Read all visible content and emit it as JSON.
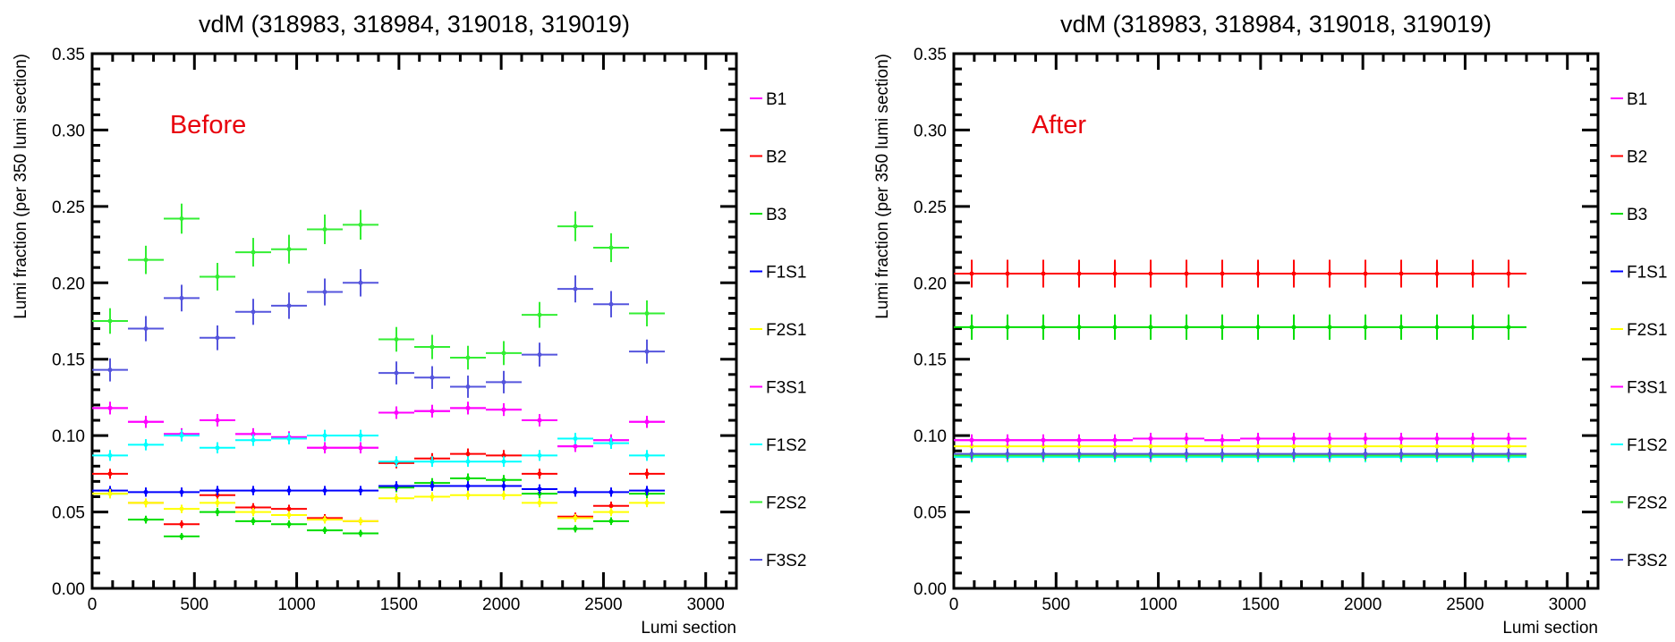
{
  "chart_data": [
    {
      "type": "scatter",
      "title": "vdM (318983, 318984, 319018, 319019)",
      "annotation": "Before",
      "annotation_color": "#e8000b",
      "xlabel": "Lumi section",
      "ylabel": "Lumi fraction (per 350 lumi section)",
      "xlim": [
        0,
        3150
      ],
      "ylim": [
        0,
        0.35
      ],
      "xticks": [
        0,
        500,
        1000,
        1500,
        2000,
        2500,
        3000
      ],
      "yticks": [
        0.0,
        0.05,
        0.1,
        0.15,
        0.2,
        0.25,
        0.3,
        0.35
      ],
      "ytick_labels": [
        "0.00",
        "0.05",
        "0.10",
        "0.15",
        "0.20",
        "0.25",
        "0.30",
        "0.35"
      ],
      "legend_position": "right",
      "x": [
        87.5,
        262.5,
        437.5,
        612.5,
        787.5,
        962.5,
        1137.5,
        1312.5,
        1487.5,
        1662.5,
        1837.5,
        2012.5,
        2187.5,
        2362.5,
        2537.5,
        2712.5
      ],
      "x_halfwidth": 87.5,
      "series": [
        {
          "name": "B1",
          "color": "#ff00ff",
          "values": [
            0.118,
            0.109,
            0.101,
            0.11,
            0.101,
            0.099,
            0.092,
            0.092,
            0.115,
            0.116,
            0.118,
            0.117,
            0.11,
            0.093,
            0.097,
            0.109
          ]
        },
        {
          "name": "B2",
          "color": "#ff0000",
          "values": [
            0.075,
            0.056,
            0.042,
            0.061,
            0.053,
            0.052,
            0.046,
            0.044,
            0.082,
            0.085,
            0.088,
            0.087,
            0.075,
            0.047,
            0.054,
            0.075
          ]
        },
        {
          "name": "B3",
          "color": "#00dd00",
          "values": [
            0.062,
            0.045,
            0.034,
            0.05,
            0.044,
            0.042,
            0.038,
            0.036,
            0.066,
            0.069,
            0.072,
            0.071,
            0.062,
            0.039,
            0.044,
            0.062
          ]
        },
        {
          "name": "F1S1",
          "color": "#0000ff",
          "values": [
            0.064,
            0.063,
            0.063,
            0.064,
            0.064,
            0.064,
            0.064,
            0.064,
            0.067,
            0.067,
            0.067,
            0.067,
            0.065,
            0.063,
            0.063,
            0.064
          ]
        },
        {
          "name": "F2S1",
          "color": "#ffff00",
          "values": [
            0.062,
            0.056,
            0.052,
            0.056,
            0.05,
            0.048,
            0.045,
            0.044,
            0.059,
            0.06,
            0.061,
            0.061,
            0.056,
            0.046,
            0.05,
            0.056
          ]
        },
        {
          "name": "F3S1",
          "color": "#ff00ff",
          "values": [
            0.118,
            0.109,
            0.101,
            0.11,
            0.101,
            0.099,
            0.092,
            0.092,
            0.115,
            0.116,
            0.118,
            0.117,
            0.11,
            0.093,
            0.097,
            0.109
          ]
        },
        {
          "name": "F1S2",
          "color": "#00ffff",
          "values": [
            0.087,
            0.094,
            0.1,
            0.092,
            0.097,
            0.098,
            0.1,
            0.1,
            0.083,
            0.083,
            0.083,
            0.083,
            0.087,
            0.098,
            0.095,
            0.087
          ]
        },
        {
          "name": "F2S2",
          "color": "#33ee33",
          "values": [
            0.175,
            0.215,
            0.242,
            0.204,
            0.22,
            0.222,
            0.235,
            0.238,
            0.163,
            0.158,
            0.151,
            0.154,
            0.179,
            0.237,
            0.223,
            0.18
          ]
        },
        {
          "name": "F3S2",
          "color": "#5555dd",
          "values": [
            0.143,
            0.17,
            0.19,
            0.164,
            0.181,
            0.185,
            0.194,
            0.2,
            0.141,
            0.138,
            0.132,
            0.135,
            0.153,
            0.196,
            0.186,
            0.155
          ]
        }
      ]
    },
    {
      "type": "scatter",
      "title": "vdM (318983, 318984, 319018, 319019)",
      "annotation": "After",
      "annotation_color": "#e8000b",
      "xlabel": "Lumi section",
      "ylabel": "Lumi fraction (per 350 lumi section)",
      "xlim": [
        0,
        3150
      ],
      "ylim": [
        0,
        0.35
      ],
      "xticks": [
        0,
        500,
        1000,
        1500,
        2000,
        2500,
        3000
      ],
      "yticks": [
        0.0,
        0.05,
        0.1,
        0.15,
        0.2,
        0.25,
        0.3,
        0.35
      ],
      "ytick_labels": [
        "0.00",
        "0.05",
        "0.10",
        "0.15",
        "0.20",
        "0.25",
        "0.30",
        "0.35"
      ],
      "legend_position": "right",
      "x": [
        87.5,
        262.5,
        437.5,
        612.5,
        787.5,
        962.5,
        1137.5,
        1312.5,
        1487.5,
        1662.5,
        1837.5,
        2012.5,
        2187.5,
        2362.5,
        2537.5,
        2712.5
      ],
      "x_halfwidth": 87.5,
      "series": [
        {
          "name": "B1",
          "color": "#ff00ff",
          "values": [
            0.097,
            0.097,
            0.097,
            0.097,
            0.097,
            0.098,
            0.098,
            0.097,
            0.098,
            0.098,
            0.098,
            0.098,
            0.098,
            0.098,
            0.098,
            0.098
          ]
        },
        {
          "name": "B2",
          "color": "#ff0000",
          "values": [
            0.206,
            0.206,
            0.206,
            0.206,
            0.206,
            0.206,
            0.206,
            0.206,
            0.206,
            0.206,
            0.206,
            0.206,
            0.206,
            0.206,
            0.206,
            0.206
          ]
        },
        {
          "name": "B3",
          "color": "#00dd00",
          "values": [
            0.171,
            0.171,
            0.171,
            0.171,
            0.171,
            0.171,
            0.171,
            0.171,
            0.171,
            0.171,
            0.171,
            0.171,
            0.171,
            0.171,
            0.171,
            0.171
          ]
        },
        {
          "name": "F1S1",
          "color": "#0000ff",
          "values": [
            0.087,
            0.087,
            0.087,
            0.087,
            0.087,
            0.087,
            0.087,
            0.087,
            0.087,
            0.087,
            0.087,
            0.087,
            0.087,
            0.087,
            0.087,
            0.087
          ]
        },
        {
          "name": "F2S1",
          "color": "#ffff00",
          "values": [
            0.093,
            0.093,
            0.093,
            0.093,
            0.093,
            0.093,
            0.093,
            0.093,
            0.093,
            0.093,
            0.093,
            0.093,
            0.093,
            0.093,
            0.093,
            0.093
          ]
        },
        {
          "name": "F3S1",
          "color": "#ff00ff",
          "values": [
            0.097,
            0.097,
            0.097,
            0.097,
            0.097,
            0.098,
            0.098,
            0.097,
            0.098,
            0.098,
            0.098,
            0.098,
            0.098,
            0.098,
            0.098,
            0.098
          ]
        },
        {
          "name": "F1S2",
          "color": "#00ffff",
          "values": [
            0.086,
            0.086,
            0.086,
            0.086,
            0.086,
            0.086,
            0.086,
            0.086,
            0.086,
            0.086,
            0.086,
            0.086,
            0.086,
            0.086,
            0.086,
            0.086
          ]
        },
        {
          "name": "F2S2",
          "color": "#33ee33",
          "values": [
            0.087,
            0.087,
            0.087,
            0.087,
            0.087,
            0.087,
            0.087,
            0.087,
            0.087,
            0.087,
            0.087,
            0.087,
            0.087,
            0.087,
            0.087,
            0.087
          ]
        },
        {
          "name": "F3S2",
          "color": "#5555dd",
          "values": [
            0.088,
            0.088,
            0.088,
            0.088,
            0.088,
            0.088,
            0.088,
            0.088,
            0.088,
            0.088,
            0.088,
            0.088,
            0.088,
            0.088,
            0.088,
            0.088
          ]
        }
      ]
    }
  ]
}
